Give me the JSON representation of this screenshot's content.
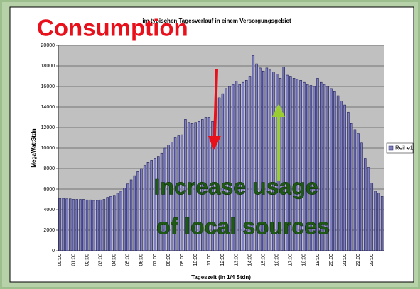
{
  "chart_data": {
    "type": "bar",
    "title": "im typischen Tagesverlauf in einem Versorgungsgebiet",
    "x_label": "Tageszeit (in 1/4 Stdn)",
    "y_label": "MegaWattStdn",
    "annotations": [
      "Consumption",
      "Increase usage",
      "of local sources"
    ],
    "categories": [
      "00:00",
      null,
      null,
      null,
      "01:00",
      null,
      null,
      null,
      "02:00",
      null,
      null,
      null,
      "03:00",
      null,
      null,
      null,
      "04:00",
      null,
      null,
      null,
      "05:00",
      null,
      null,
      null,
      "06:00",
      null,
      null,
      null,
      "07:00",
      null,
      null,
      null,
      "08:00",
      null,
      null,
      null,
      "09:00",
      null,
      null,
      null,
      "10:00",
      null,
      null,
      null,
      "11:00",
      null,
      null,
      null,
      "12:00",
      null,
      null,
      null,
      "13:00",
      null,
      null,
      null,
      "14:00",
      null,
      null,
      null,
      "15:00",
      null,
      null,
      null,
      "16:00",
      null,
      null,
      null,
      "17:00",
      null,
      null,
      null,
      "18:00",
      null,
      null,
      null,
      "19:00",
      null,
      null,
      null,
      "20:00",
      null,
      null,
      null,
      "21:00",
      null,
      null,
      null,
      "22:00",
      null,
      null,
      null,
      "23:00",
      null,
      null,
      null
    ],
    "series": [
      {
        "name": "Reihe1",
        "color": "#7f7fbf",
        "values": [
          5100,
          5100,
          5050,
          5050,
          5000,
          5000,
          5000,
          5000,
          4950,
          4950,
          4900,
          4900,
          4950,
          5000,
          5200,
          5300,
          5400,
          5600,
          5800,
          6100,
          6500,
          6900,
          7300,
          7700,
          8000,
          8300,
          8600,
          8800,
          9000,
          9200,
          9500,
          10000,
          10300,
          10600,
          11000,
          11200,
          11300,
          12800,
          12500,
          12400,
          12500,
          12600,
          12800,
          13000,
          13000,
          12600,
          10500,
          14900,
          15300,
          15800,
          16000,
          16200,
          16500,
          16200,
          16400,
          16600,
          17000,
          19000,
          18200,
          17800,
          17500,
          17800,
          17600,
          17400,
          17200,
          16800,
          17900,
          17100,
          17000,
          16800,
          16700,
          16600,
          16400,
          16200,
          16100,
          16000,
          16800,
          16400,
          16200,
          16000,
          15800,
          15500,
          15100,
          14600,
          14200,
          13500,
          12400,
          11800,
          11400,
          10500,
          9000,
          8100,
          6600,
          5800,
          5600,
          5300
        ]
      }
    ],
    "ylim": [
      0,
      20000
    ],
    "yticks": [
      0,
      2000,
      4000,
      6000,
      8000,
      10000,
      12000,
      14000,
      16000,
      18000,
      20000
    ],
    "grid": true,
    "legend": "right"
  }
}
